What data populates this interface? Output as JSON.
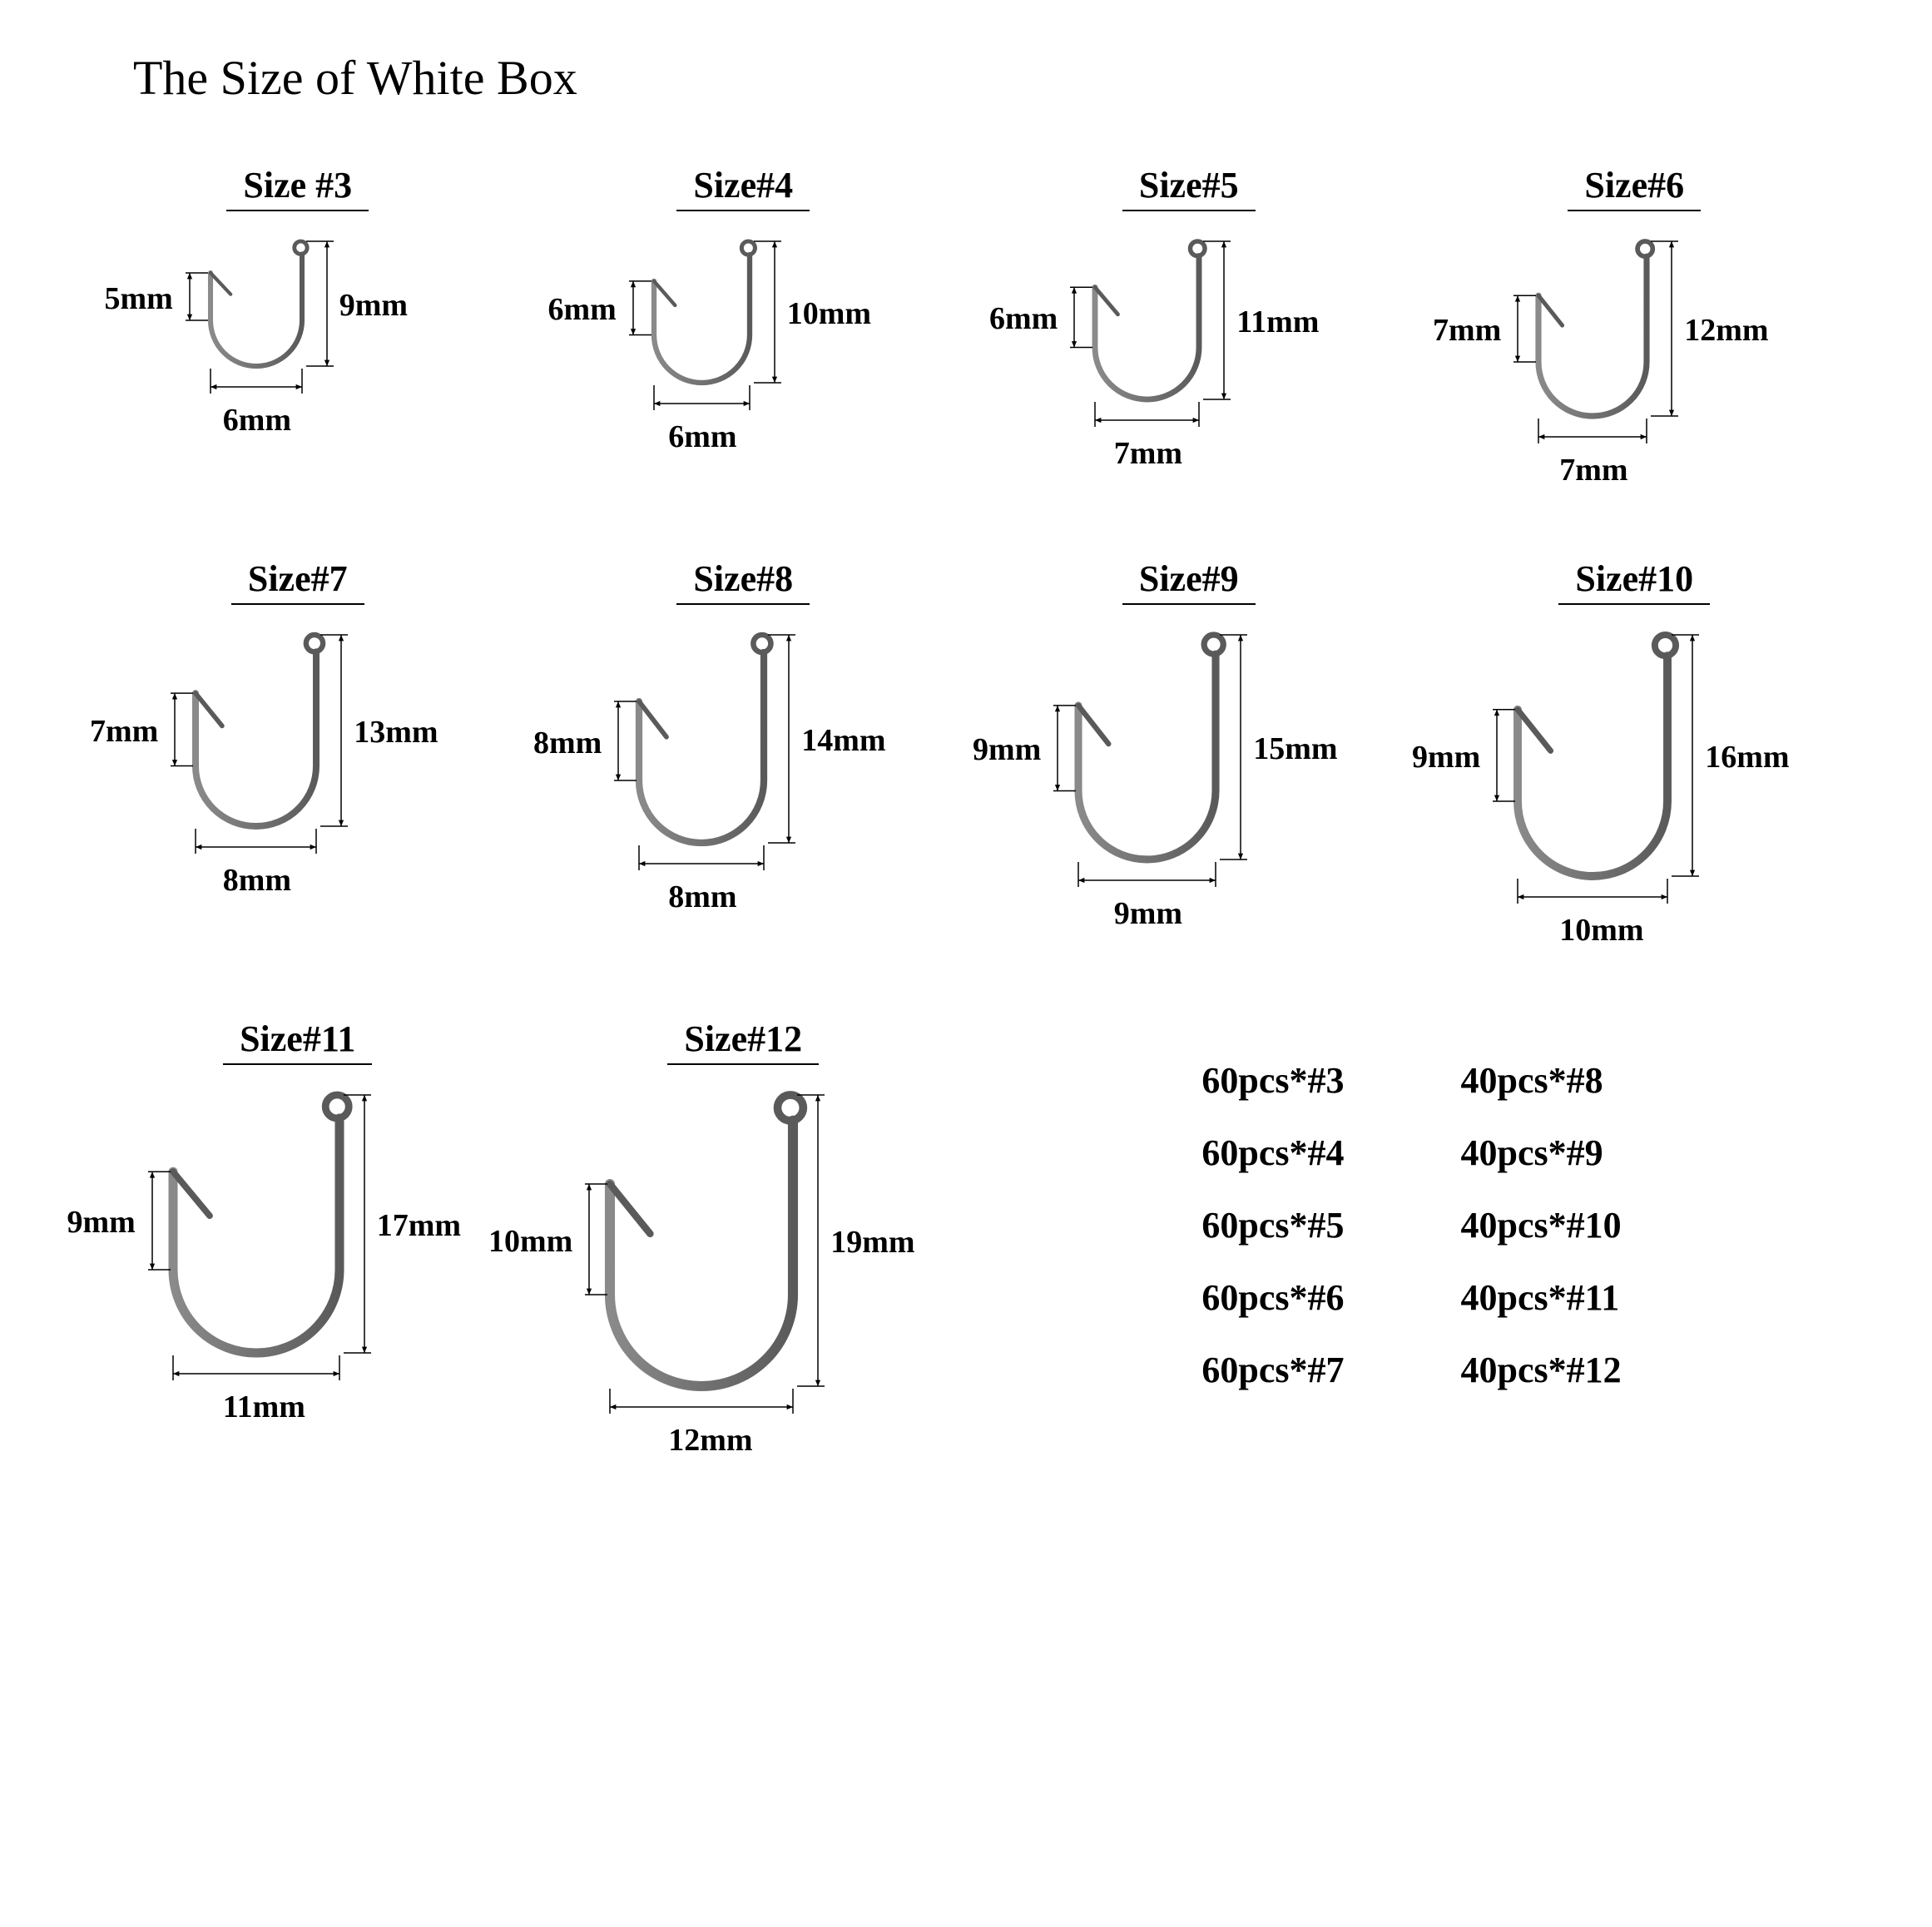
{
  "title": "The Size of White Box",
  "hook_color": "#5a5a5a",
  "hook_highlight": "#8a8a8a",
  "arrow_color": "#000000",
  "label_fontsize": 38,
  "title_fontsize": 58,
  "size_label_fontsize": 44,
  "background": "#ffffff",
  "hooks": [
    {
      "id": "h3",
      "size_label": "Size #3",
      "barb": "5mm",
      "height": "9mm",
      "width": "6mm",
      "draw_h": 150,
      "draw_w": 110
    },
    {
      "id": "h4",
      "size_label": "Size#4",
      "barb": "6mm",
      "height": "10mm",
      "width": "6mm",
      "draw_h": 170,
      "draw_w": 115
    },
    {
      "id": "h5",
      "size_label": "Size#5",
      "barb": "6mm",
      "height": "11mm",
      "width": "7mm",
      "draw_h": 190,
      "draw_w": 125
    },
    {
      "id": "h6",
      "size_label": "Size#6",
      "barb": "7mm",
      "height": "12mm",
      "width": "7mm",
      "draw_h": 210,
      "draw_w": 130
    },
    {
      "id": "h7",
      "size_label": "Size#7",
      "barb": "7mm",
      "height": "13mm",
      "width": "8mm",
      "draw_h": 230,
      "draw_w": 145
    },
    {
      "id": "h8",
      "size_label": "Size#8",
      "barb": "8mm",
      "height": "14mm",
      "width": "8mm",
      "draw_h": 250,
      "draw_w": 150
    },
    {
      "id": "h9",
      "size_label": "Size#9",
      "barb": "9mm",
      "height": "15mm",
      "width": "9mm",
      "draw_h": 270,
      "draw_w": 165
    },
    {
      "id": "h10",
      "size_label": "Size#10",
      "barb": "9mm",
      "height": "16mm",
      "width": "10mm",
      "draw_h": 290,
      "draw_w": 180
    },
    {
      "id": "h11",
      "size_label": "Size#11",
      "barb": "9mm",
      "height": "17mm",
      "width": "11mm",
      "draw_h": 310,
      "draw_w": 200
    },
    {
      "id": "h12",
      "size_label": "Size#12",
      "barb": "10mm",
      "height": "19mm",
      "width": "12mm",
      "draw_h": 350,
      "draw_w": 220
    }
  ],
  "quantities": {
    "col1": [
      "60pcs*#3",
      "60pcs*#4",
      "60pcs*#5",
      "60pcs*#6",
      "60pcs*#7"
    ],
    "col2": [
      "40pcs*#8",
      "40pcs*#9",
      "40pcs*#10",
      "40pcs*#11",
      "40pcs*#12"
    ]
  }
}
